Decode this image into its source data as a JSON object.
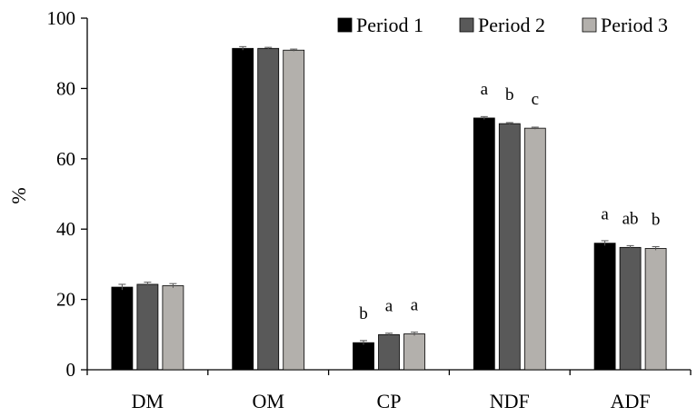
{
  "chart_data": {
    "type": "bar",
    "title": "",
    "xlabel": "",
    "ylabel": "%",
    "ylim": [
      0,
      100
    ],
    "yticks": [
      0,
      20,
      40,
      60,
      80,
      100
    ],
    "grid": false,
    "legend_position": "top-right",
    "categories": [
      "DM",
      "OM",
      "CP",
      "NDF",
      "ADF"
    ],
    "series": [
      {
        "name": "Period 1",
        "color": "#000000",
        "values": [
          23.5,
          91.4,
          7.7,
          71.6,
          36.0
        ],
        "errors": [
          0.8,
          0.5,
          0.6,
          0.4,
          0.7
        ],
        "letters": [
          "",
          "",
          "b",
          "a",
          "a"
        ]
      },
      {
        "name": "Period 2",
        "color": "#595959",
        "values": [
          24.3,
          91.4,
          10.0,
          70.0,
          34.8
        ],
        "errors": [
          0.6,
          0.3,
          0.4,
          0.3,
          0.5
        ],
        "letters": [
          "",
          "",
          "a",
          "b",
          "ab"
        ]
      },
      {
        "name": "Period 3",
        "color": "#b3b0ac",
        "values": [
          23.9,
          90.9,
          10.2,
          68.7,
          34.5
        ],
        "errors": [
          0.6,
          0.3,
          0.5,
          0.3,
          0.5
        ],
        "letters": [
          "",
          "",
          "a",
          "c",
          "b"
        ]
      }
    ]
  }
}
